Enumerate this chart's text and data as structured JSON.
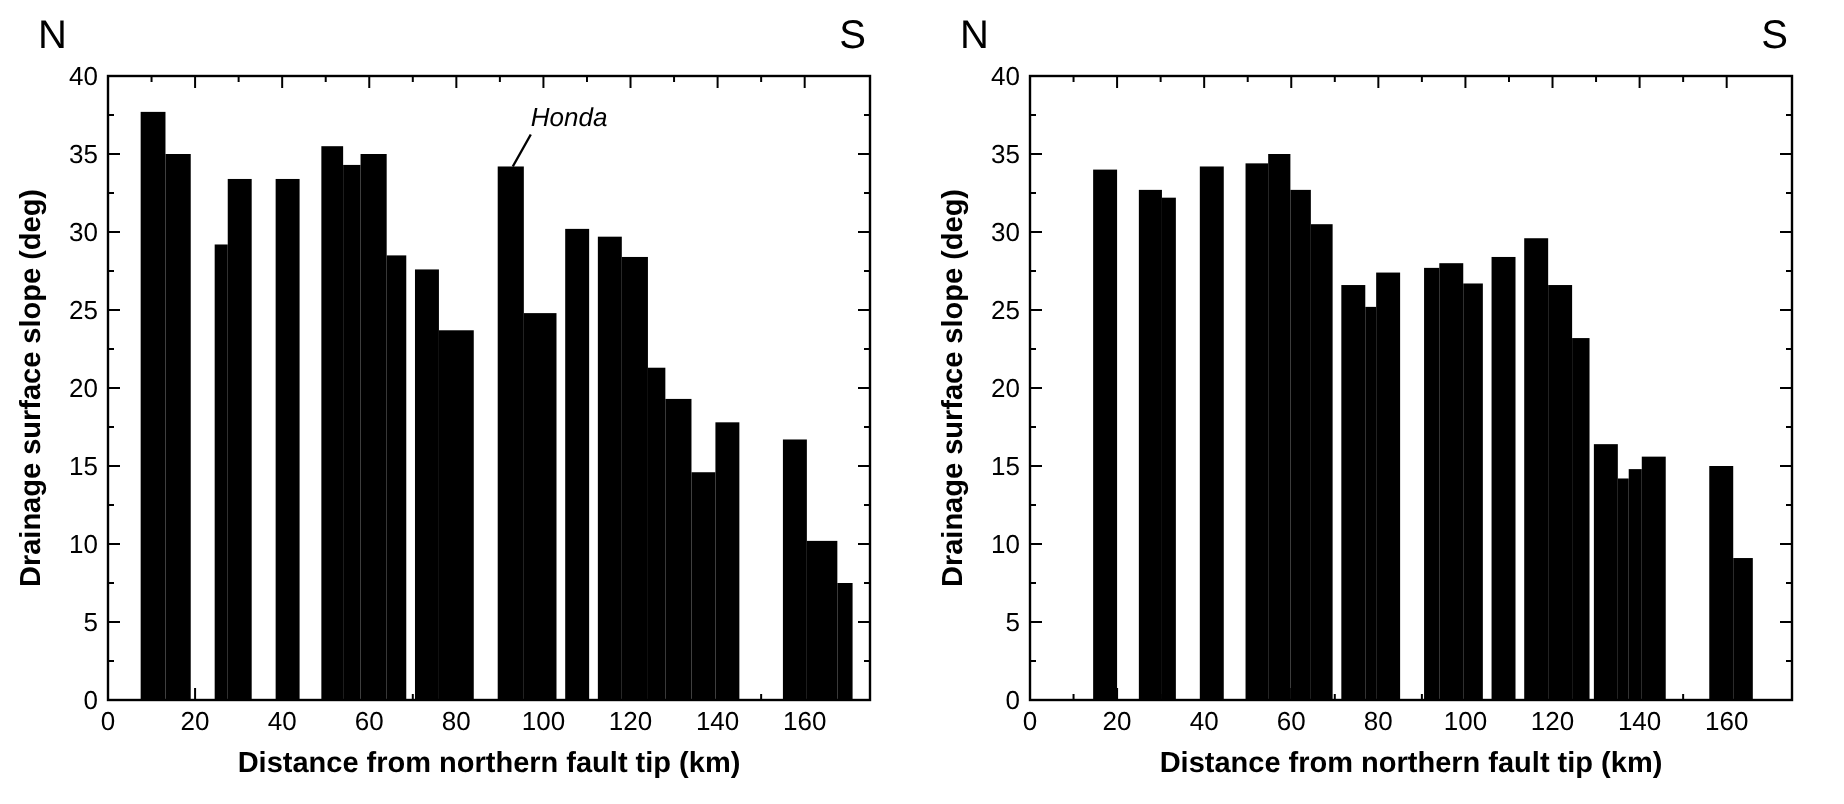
{
  "chart_data": [
    {
      "type": "histogram",
      "xlabel": "Distance from northern fault tip (km)",
      "ylabel": "Drainage surface slope (deg)",
      "xlim": [
        0,
        175
      ],
      "xticks": [
        0,
        20,
        40,
        60,
        80,
        100,
        120,
        140,
        160
      ],
      "ylim": [
        0,
        40
      ],
      "yticks": [
        0,
        5,
        10,
        15,
        20,
        25,
        30,
        35,
        40
      ],
      "grid": false,
      "color": "#000000",
      "bins": [
        7.5,
        13.2,
        19,
        24.5,
        27.5,
        33,
        38.5,
        44,
        49,
        54,
        58,
        64,
        68.5,
        70.5,
        76,
        84,
        89.5,
        95.5,
        103,
        105,
        110.5,
        112.5,
        118,
        124,
        128,
        134,
        139.5,
        145,
        155,
        160.5,
        167.5,
        171
      ],
      "values": [
        37.7,
        35,
        0,
        29.2,
        33.4,
        0,
        33.4,
        0,
        35.5,
        34.3,
        35,
        28.5,
        0,
        27.6,
        23.7,
        0,
        34.2,
        24.8,
        0,
        30.2,
        0,
        29.7,
        28.4,
        21.3,
        19.3,
        14.6,
        17.8,
        0,
        16.7,
        10.2,
        7.5
      ],
      "annotations": [
        "N",
        "S",
        {
          "text": "Honda",
          "x": 92.5,
          "y": 34.2
        }
      ]
    },
    {
      "type": "histogram",
      "xlabel": "Distance from northern fault tip (km)",
      "ylabel": "Drainage surface slope (deg)",
      "xlim": [
        0,
        175
      ],
      "xticks": [
        0,
        20,
        40,
        60,
        80,
        100,
        120,
        140,
        160
      ],
      "ylim": [
        0,
        40
      ],
      "yticks": [
        0,
        5,
        10,
        15,
        20,
        25,
        30,
        35,
        40
      ],
      "grid": false,
      "color": "#000000",
      "bins": [
        14.5,
        20,
        25,
        30.3,
        33.5,
        39,
        44.5,
        49.5,
        54.7,
        59.8,
        64.5,
        69.5,
        71.5,
        77,
        79.5,
        85,
        90.5,
        94,
        99.5,
        104,
        106,
        111.5,
        113.5,
        119,
        124.5,
        128.5,
        129.5,
        135,
        137.5,
        140.5,
        146,
        156,
        161.5,
        166
      ],
      "values": [
        34,
        0,
        32.7,
        32.2,
        0,
        34.2,
        0,
        34.4,
        35,
        32.7,
        30.5,
        0,
        26.6,
        25.2,
        27.4,
        0,
        27.7,
        28,
        26.7,
        0,
        28.4,
        0,
        29.6,
        26.6,
        23.2,
        0,
        16.4,
        14.2,
        14.8,
        15.6,
        0,
        15,
        9.1
      ],
      "annotations": [
        "N",
        "S"
      ]
    }
  ]
}
